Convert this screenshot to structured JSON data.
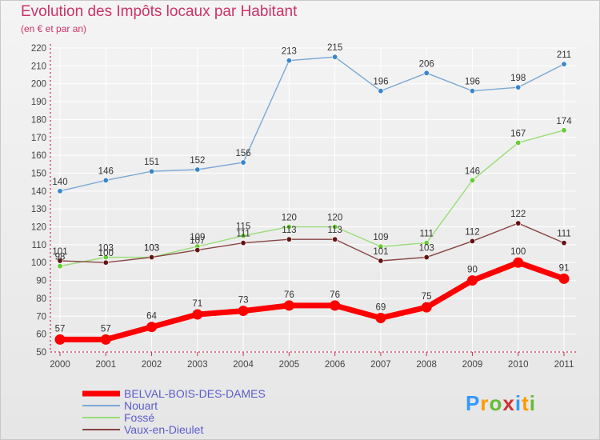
{
  "title": "Evolution des Impôts locaux par Habitant",
  "subtitle": "(en € et par an)",
  "logo": {
    "text": "Proxiti",
    "letters": [
      "P",
      "r",
      "o",
      "x",
      "i",
      "t",
      "i"
    ],
    "colors": [
      "#3399ff",
      "#ff9900",
      "#66bb33",
      "#cc3333",
      "#3399ff",
      "#ff9900",
      "#66bb33"
    ]
  },
  "chart_data": {
    "type": "line",
    "x": [
      "2000",
      "2001",
      "2002",
      "2003",
      "2004",
      "2005",
      "2006",
      "2007",
      "2008",
      "2009",
      "2010",
      "2011"
    ],
    "ylim": [
      50,
      220
    ],
    "yticks": [
      50,
      60,
      70,
      80,
      90,
      100,
      110,
      120,
      130,
      140,
      150,
      160,
      170,
      180,
      190,
      200,
      210,
      220
    ],
    "grid": true,
    "legend_position": "bottom-left",
    "series": [
      {
        "name": "BELVAL-BOIS-DES-DAMES",
        "color": "#ff0000",
        "point_color": "#ff0000",
        "width": 7,
        "marker": 6.5,
        "values": [
          57,
          57,
          64,
          71,
          73,
          76,
          76,
          69,
          75,
          90,
          100,
          91
        ]
      },
      {
        "name": "Nouart",
        "color": "#7aa8d6",
        "point_color": "#3a85c7",
        "width": 1.4,
        "marker": 3.2,
        "values": [
          140,
          146,
          151,
          152,
          156,
          213,
          215,
          196,
          206,
          196,
          198,
          211
        ]
      },
      {
        "name": "Fossé",
        "color": "#99dd77",
        "point_color": "#66cc33",
        "width": 1.4,
        "marker": 3.2,
        "values": [
          98,
          103,
          103,
          109,
          115,
          120,
          120,
          109,
          111,
          146,
          167,
          174
        ]
      },
      {
        "name": "Vaux-en-Dieulet",
        "color": "#884444",
        "point_color": "#661111",
        "width": 1.4,
        "marker": 3.2,
        "values": [
          101,
          100,
          103,
          107,
          111,
          113,
          113,
          101,
          103,
          112,
          122,
          111
        ]
      }
    ]
  }
}
